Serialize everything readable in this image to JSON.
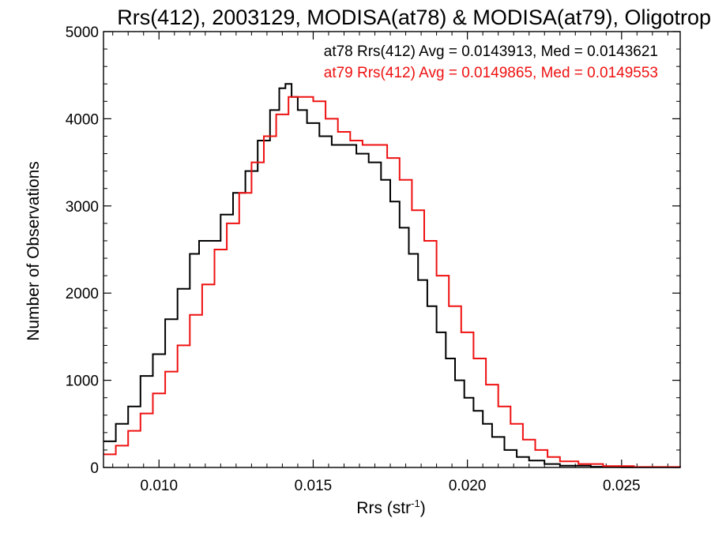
{
  "chart_data": {
    "type": "step-histogram",
    "title": "Rrs(412), 2003129, MODISA(at78) & MODISA(at79), Oligotrop",
    "xlabel_main": "Rrs (str",
    "xlabel_sup": "-1",
    "xlabel_close": ")",
    "ylabel": "Number of Observations",
    "xlim": [
      0.0082,
      0.0269
    ],
    "ylim": [
      0,
      5000
    ],
    "x_ticks": [
      0.01,
      0.015,
      0.02,
      0.025
    ],
    "x_tick_labels": [
      "0.010",
      "0.015",
      "0.020",
      "0.025"
    ],
    "y_ticks": [
      0,
      1000,
      2000,
      3000,
      4000,
      5000
    ],
    "y_tick_labels": [
      "0",
      "1000",
      "2000",
      "3000",
      "4000",
      "5000"
    ],
    "legend_position": "top-right",
    "series": [
      {
        "name": "at78",
        "color": "#000000",
        "legend": "at78 Rrs(412) Avg = 0.0143913, Med = 0.0143621",
        "points": [
          [
            0.0082,
            300
          ],
          [
            0.0086,
            500
          ],
          [
            0.009,
            700
          ],
          [
            0.0094,
            1050
          ],
          [
            0.0098,
            1300
          ],
          [
            0.0102,
            1700
          ],
          [
            0.0106,
            2050
          ],
          [
            0.011,
            2450
          ],
          [
            0.0113,
            2600
          ],
          [
            0.0116,
            2600
          ],
          [
            0.012,
            2900
          ],
          [
            0.0124,
            3150
          ],
          [
            0.0128,
            3400
          ],
          [
            0.0132,
            3750
          ],
          [
            0.0136,
            4100
          ],
          [
            0.0139,
            4350
          ],
          [
            0.0141,
            4400
          ],
          [
            0.0143,
            4250
          ],
          [
            0.0145,
            4100
          ],
          [
            0.0148,
            3950
          ],
          [
            0.0152,
            3800
          ],
          [
            0.0156,
            3700
          ],
          [
            0.016,
            3700
          ],
          [
            0.0164,
            3600
          ],
          [
            0.0168,
            3500
          ],
          [
            0.0172,
            3300
          ],
          [
            0.0175,
            3050
          ],
          [
            0.0178,
            2750
          ],
          [
            0.0181,
            2450
          ],
          [
            0.0184,
            2150
          ],
          [
            0.0187,
            1850
          ],
          [
            0.019,
            1550
          ],
          [
            0.0193,
            1250
          ],
          [
            0.0196,
            1000
          ],
          [
            0.0199,
            800
          ],
          [
            0.0202,
            650
          ],
          [
            0.0205,
            500
          ],
          [
            0.0208,
            350
          ],
          [
            0.0212,
            200
          ],
          [
            0.0216,
            120
          ],
          [
            0.022,
            80
          ],
          [
            0.0225,
            40
          ],
          [
            0.023,
            20
          ],
          [
            0.024,
            8
          ],
          [
            0.025,
            3
          ],
          [
            0.0269,
            0
          ]
        ]
      },
      {
        "name": "at79",
        "color": "#ee1111",
        "legend": "at79 Rrs(412) Avg = 0.0149865, Med = 0.0149553",
        "points": [
          [
            0.0082,
            150
          ],
          [
            0.0086,
            250
          ],
          [
            0.009,
            420
          ],
          [
            0.0094,
            620
          ],
          [
            0.0098,
            850
          ],
          [
            0.0102,
            1100
          ],
          [
            0.0106,
            1400
          ],
          [
            0.011,
            1750
          ],
          [
            0.0114,
            2100
          ],
          [
            0.0118,
            2500
          ],
          [
            0.0122,
            2800
          ],
          [
            0.0126,
            3150
          ],
          [
            0.013,
            3500
          ],
          [
            0.0134,
            3800
          ],
          [
            0.0138,
            4050
          ],
          [
            0.0142,
            4250
          ],
          [
            0.0146,
            4250
          ],
          [
            0.015,
            4200
          ],
          [
            0.0154,
            4000
          ],
          [
            0.0158,
            3850
          ],
          [
            0.0162,
            3750
          ],
          [
            0.0166,
            3700
          ],
          [
            0.017,
            3700
          ],
          [
            0.0174,
            3550
          ],
          [
            0.0178,
            3300
          ],
          [
            0.0182,
            2950
          ],
          [
            0.0186,
            2600
          ],
          [
            0.019,
            2200
          ],
          [
            0.0194,
            1850
          ],
          [
            0.0198,
            1550
          ],
          [
            0.0202,
            1250
          ],
          [
            0.0206,
            950
          ],
          [
            0.021,
            700
          ],
          [
            0.0214,
            500
          ],
          [
            0.0218,
            320
          ],
          [
            0.0222,
            200
          ],
          [
            0.0226,
            120
          ],
          [
            0.023,
            70
          ],
          [
            0.0236,
            40
          ],
          [
            0.0244,
            15
          ],
          [
            0.0254,
            5
          ],
          [
            0.0269,
            0
          ]
        ]
      }
    ]
  }
}
